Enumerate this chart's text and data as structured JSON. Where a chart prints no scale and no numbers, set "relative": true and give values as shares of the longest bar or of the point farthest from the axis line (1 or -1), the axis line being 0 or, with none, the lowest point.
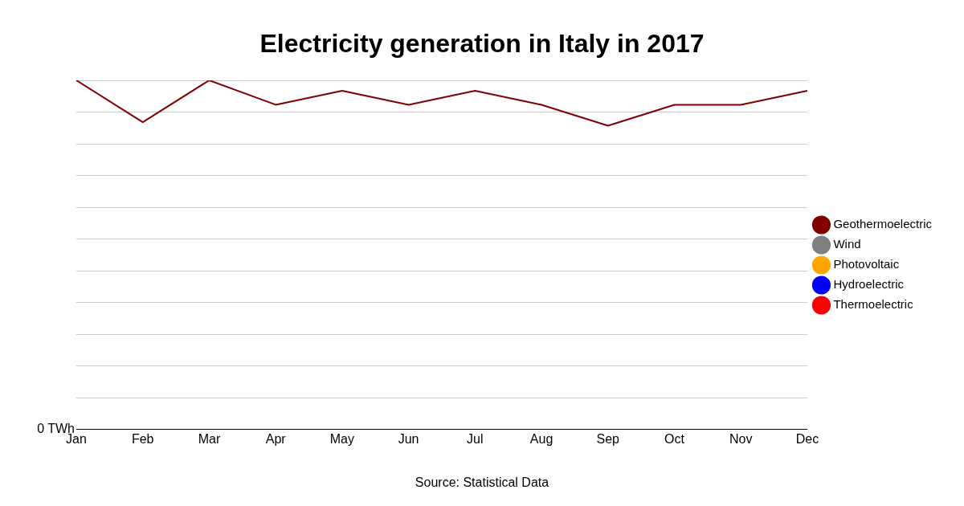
{
  "chart_data": {
    "type": "line",
    "title": "Electricity generation in Italy in 2017",
    "relative": true,
    "grid": "y",
    "legend": "right",
    "marker": "none",
    "line_style": "solid",
    "categories": [
      "Jan",
      "Feb",
      "Mar",
      "Apr",
      "May",
      "Jun",
      "Jul",
      "Aug",
      "Sep",
      "Oct",
      "Nov",
      "Dec"
    ],
    "annotations": [
      "0 TWh",
      "Source: Statistical Data"
    ],
    "series": [
      {
        "name": "Geothermoelectric",
        "color": "#800000",
        "values": [
          1,
          0.88,
          1,
          0.93,
          0.97,
          0.93,
          0.97,
          0.93,
          0.87,
          0.93,
          0.93,
          0.97
        ]
      },
      {
        "name": "Wind",
        "color": "#808080",
        "values": [
          null,
          null,
          null,
          null,
          null,
          null,
          null,
          null,
          null,
          null,
          null,
          null
        ]
      },
      {
        "name": "Photovoltaic",
        "color": "#ffa500",
        "values": [
          null,
          null,
          null,
          null,
          null,
          null,
          null,
          null,
          null,
          null,
          null,
          null
        ]
      },
      {
        "name": "Hydroelectric",
        "color": "#0000ff",
        "values": [
          null,
          null,
          null,
          null,
          null,
          null,
          null,
          null,
          null,
          null,
          null,
          null
        ]
      },
      {
        "name": "Thermoelectric",
        "color": "#ff0000",
        "values": [
          null,
          null,
          null,
          null,
          null,
          null,
          null,
          null,
          null,
          null,
          null,
          null
        ]
      }
    ]
  }
}
